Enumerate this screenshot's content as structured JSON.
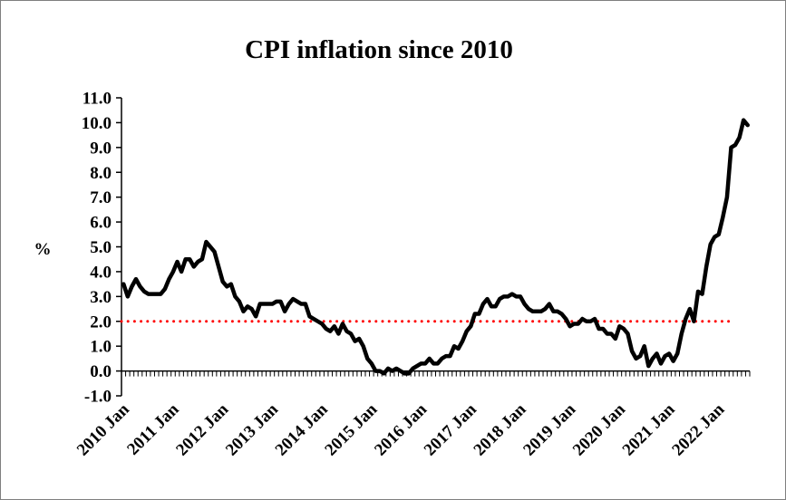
{
  "chart_data": {
    "type": "line",
    "title": "CPI inflation since 2010",
    "ylabel": "%",
    "xlabel": "",
    "ylim": [
      -1.0,
      11.0
    ],
    "yticks": [
      "-1.0",
      "0.0",
      "1.0",
      "2.0",
      "3.0",
      "4.0",
      "5.0",
      "6.0",
      "7.0",
      "8.0",
      "9.0",
      "10.0",
      "11.0"
    ],
    "xticks": [
      "2010 Jan",
      "2011 Jan",
      "2012 Jan",
      "2013 Jan",
      "2014 Jan",
      "2015 Jan",
      "2016 Jan",
      "2017 Jan",
      "2018 Jan",
      "2019 Jan",
      "2020 Jan",
      "2021 Jan",
      "2022 Jan"
    ],
    "x_start": "2010-01",
    "x_end": "2022-10",
    "grid": false,
    "legend": "none",
    "colors": {
      "series": "#000000",
      "target": "#ff0000"
    },
    "series": [
      {
        "style": "solid",
        "values": [
          3.5,
          3.0,
          3.4,
          3.7,
          3.4,
          3.2,
          3.1,
          3.1,
          3.1,
          3.1,
          3.3,
          3.7,
          4.0,
          4.4,
          4.0,
          4.5,
          4.5,
          4.2,
          4.4,
          4.5,
          5.2,
          5.0,
          4.8,
          4.2,
          3.6,
          3.4,
          3.5,
          3.0,
          2.8,
          2.4,
          2.6,
          2.5,
          2.2,
          2.7,
          2.7,
          2.7,
          2.7,
          2.8,
          2.8,
          2.4,
          2.7,
          2.9,
          2.8,
          2.7,
          2.7,
          2.2,
          2.1,
          2.0,
          1.9,
          1.7,
          1.6,
          1.8,
          1.5,
          1.9,
          1.6,
          1.5,
          1.2,
          1.3,
          1.0,
          0.5,
          0.3,
          0.0,
          0.0,
          -0.1,
          0.1,
          0.0,
          0.1,
          0.0,
          -0.1,
          -0.1,
          0.1,
          0.2,
          0.3,
          0.3,
          0.5,
          0.3,
          0.3,
          0.5,
          0.6,
          0.6,
          1.0,
          0.9,
          1.2,
          1.6,
          1.8,
          2.3,
          2.3,
          2.7,
          2.9,
          2.6,
          2.6,
          2.9,
          3.0,
          3.0,
          3.1,
          3.0,
          3.0,
          2.7,
          2.5,
          2.4,
          2.4,
          2.4,
          2.5,
          2.7,
          2.4,
          2.4,
          2.3,
          2.1,
          1.8,
          1.9,
          1.9,
          2.1,
          2.0,
          2.0,
          2.1,
          1.7,
          1.7,
          1.5,
          1.5,
          1.3,
          1.8,
          1.7,
          1.5,
          0.8,
          0.5,
          0.6,
          1.0,
          0.2,
          0.5,
          0.7,
          0.3,
          0.6,
          0.7,
          0.4,
          0.7,
          1.5,
          2.1,
          2.5,
          2.0,
          3.2,
          3.1,
          4.2,
          5.1,
          5.4,
          5.5,
          6.2,
          7.0,
          9.0,
          9.1,
          9.4,
          10.1,
          9.9
        ]
      },
      {
        "style": "dotted",
        "values": "constant",
        "value": 2.0
      }
    ]
  }
}
